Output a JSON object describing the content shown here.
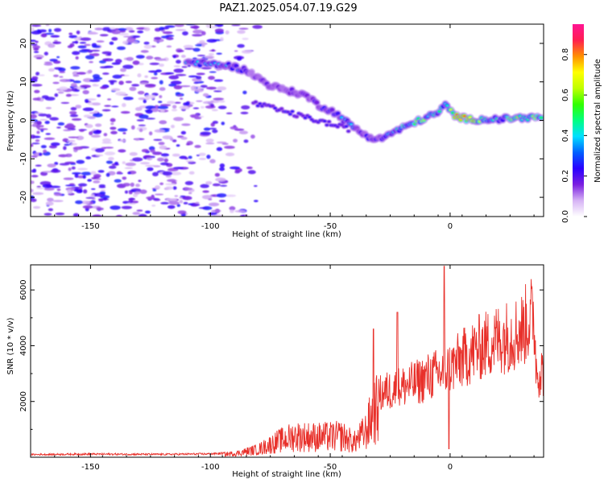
{
  "title": "PAZ1.2025.054.07.19.G29",
  "chart_data": [
    {
      "type": "heatmap",
      "xlabel": "Height of straight line (km)",
      "ylabel": "Frequency (Hz)",
      "xlim": [
        -175,
        39
      ],
      "ylim": [
        -25,
        25
      ],
      "xticks": [
        -150,
        -100,
        -50,
        0
      ],
      "yticks": [
        -20,
        -10,
        0,
        10,
        20
      ],
      "colorbar": {
        "label": "Normalized spectral amplitude",
        "range": [
          0,
          0.95
        ],
        "ticks": [
          0.0,
          0.2,
          0.4,
          0.6,
          0.8
        ],
        "colors": [
          "#ffffff",
          "#d6b3f5",
          "#7a1fe0",
          "#2a00ff",
          "#0060ff",
          "#00e0ff",
          "#00ff80",
          "#30ff00",
          "#c0ff00",
          "#ffff00",
          "#ff9000",
          "#ff1e50",
          "#ff1493"
        ]
      },
      "ridge": [
        {
          "x": -110,
          "f": 15.2,
          "amp": 0.35
        },
        {
          "x": -100,
          "f": 14.6,
          "amp": 0.4
        },
        {
          "x": -92,
          "f": 14.2,
          "amp": 0.35
        },
        {
          "x": -85,
          "f": 13.0,
          "amp": 0.25
        },
        {
          "x": -75,
          "f": 9.0,
          "amp": 0.22
        },
        {
          "x": -68,
          "f": 7.8,
          "amp": 0.26
        },
        {
          "x": -60,
          "f": 6.5,
          "amp": 0.22
        },
        {
          "x": -55,
          "f": 4.0,
          "amp": 0.28
        },
        {
          "x": -48,
          "f": 2.0,
          "amp": 0.3
        },
        {
          "x": -42,
          "f": -1.0,
          "amp": 0.35
        },
        {
          "x": -35,
          "f": -4.0,
          "amp": 0.28
        },
        {
          "x": -30,
          "f": -5.0,
          "amp": 0.3
        },
        {
          "x": -25,
          "f": -3.5,
          "amp": 0.35
        },
        {
          "x": -20,
          "f": -2.0,
          "amp": 0.5
        },
        {
          "x": -12,
          "f": 0.2,
          "amp": 0.55
        },
        {
          "x": -5,
          "f": 2.0,
          "amp": 0.45
        },
        {
          "x": -2,
          "f": 4.0,
          "amp": 0.4
        },
        {
          "x": 2,
          "f": 1.2,
          "amp": 0.8
        },
        {
          "x": 8,
          "f": 0.2,
          "amp": 0.75
        },
        {
          "x": 20,
          "f": 0.3,
          "amp": 0.4
        },
        {
          "x": 30,
          "f": 0.7,
          "amp": 0.7
        },
        {
          "x": 38,
          "f": 0.8,
          "amp": 0.45
        }
      ]
    },
    {
      "type": "line",
      "xlabel": "Height of straight line (km)",
      "ylabel": "SNR (10 * v/v)",
      "xlim": [
        -175,
        39
      ],
      "ylim": [
        0,
        6900
      ],
      "xticks": [
        -150,
        -100,
        -50,
        0
      ],
      "yticks": [
        2000,
        4000,
        6000
      ],
      "color": "#e8302a",
      "envelope": [
        {
          "x": -175,
          "y": 120
        },
        {
          "x": -150,
          "y": 140
        },
        {
          "x": -120,
          "y": 130
        },
        {
          "x": -100,
          "y": 150
        },
        {
          "x": -90,
          "y": 200
        },
        {
          "x": -80,
          "y": 450
        },
        {
          "x": -72,
          "y": 900
        },
        {
          "x": -65,
          "y": 1200
        },
        {
          "x": -55,
          "y": 1150
        },
        {
          "x": -45,
          "y": 1200
        },
        {
          "x": -40,
          "y": 850
        },
        {
          "x": -35,
          "y": 1500
        },
        {
          "x": -32,
          "y": 2600
        },
        {
          "x": -28,
          "y": 2900
        },
        {
          "x": -22,
          "y": 3100
        },
        {
          "x": -15,
          "y": 3300
        },
        {
          "x": -8,
          "y": 3650
        },
        {
          "x": -3,
          "y": 3800
        },
        {
          "x": 0,
          "y": 4000
        },
        {
          "x": 5,
          "y": 4400
        },
        {
          "x": 12,
          "y": 4900
        },
        {
          "x": 20,
          "y": 5300
        },
        {
          "x": 26,
          "y": 5500
        },
        {
          "x": 30,
          "y": 5700
        },
        {
          "x": 33,
          "y": 6200
        },
        {
          "x": 35,
          "y": 6300
        },
        {
          "x": 36,
          "y": 3900
        },
        {
          "x": 39,
          "y": 3800
        }
      ],
      "spikes": [
        {
          "x": -2.5,
          "y": 6850
        },
        {
          "x": -0.5,
          "y": 300
        },
        {
          "x": -22,
          "y": 5200
        },
        {
          "x": -32,
          "y": 4600
        }
      ]
    }
  ]
}
